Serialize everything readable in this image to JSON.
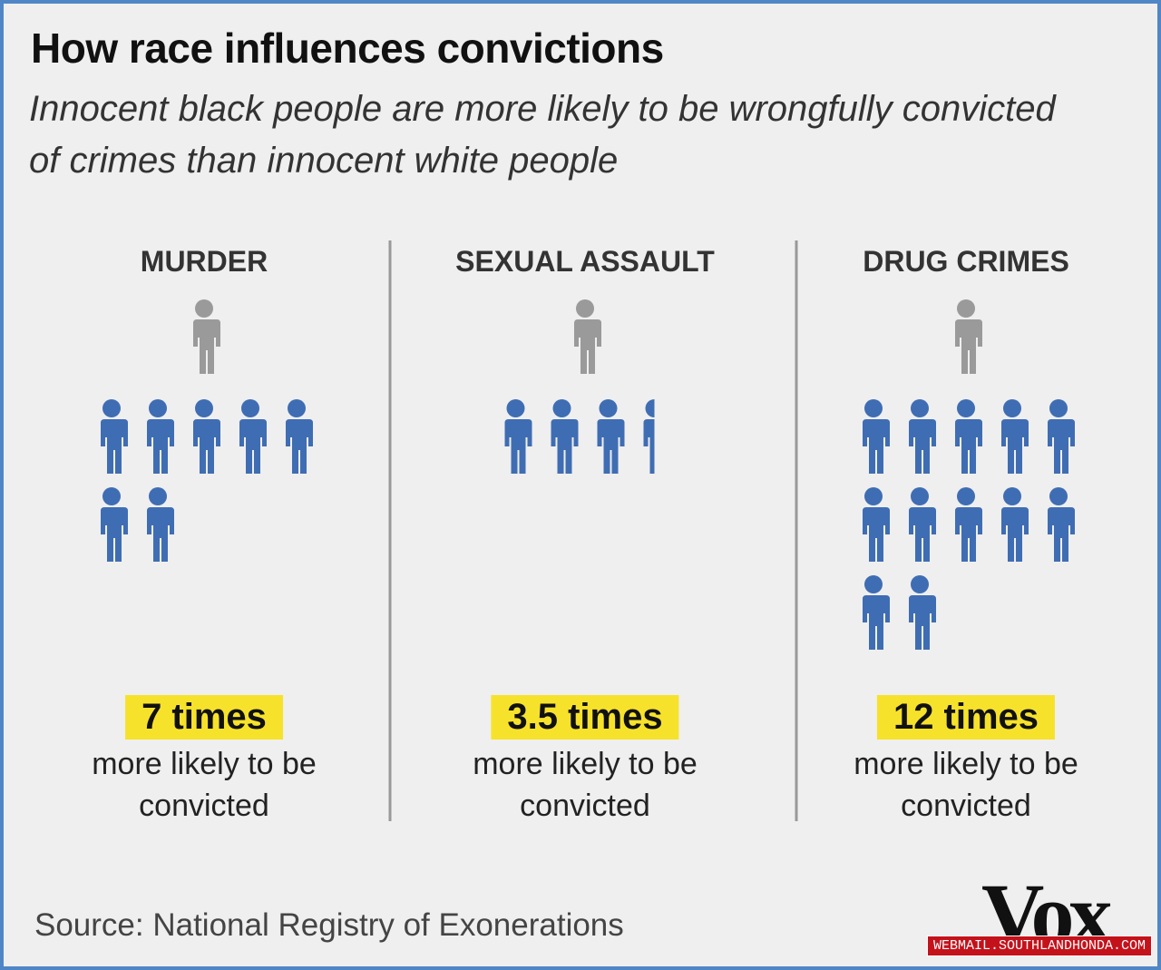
{
  "title": "How race influences convictions",
  "subtitle": "Innocent black people are more likely to be wrongfully convicted of crimes than innocent white people",
  "panels": [
    {
      "category": "MURDER",
      "value": 7,
      "value_label": "7 times",
      "caption": "more likely to be convicted"
    },
    {
      "category": "SEXUAL ASSAULT",
      "value": 3.5,
      "value_label": "3.5 times",
      "caption": "more likely to be convicted"
    },
    {
      "category": "DRUG CRIMES",
      "value": 12,
      "value_label": "12 times",
      "caption": "more likely to be convicted"
    }
  ],
  "source": "Source: National Registry of Exonerations",
  "logo": "Vox",
  "watermark": "WEBMAIL.SOUTHLANDHONDA.COM"
}
